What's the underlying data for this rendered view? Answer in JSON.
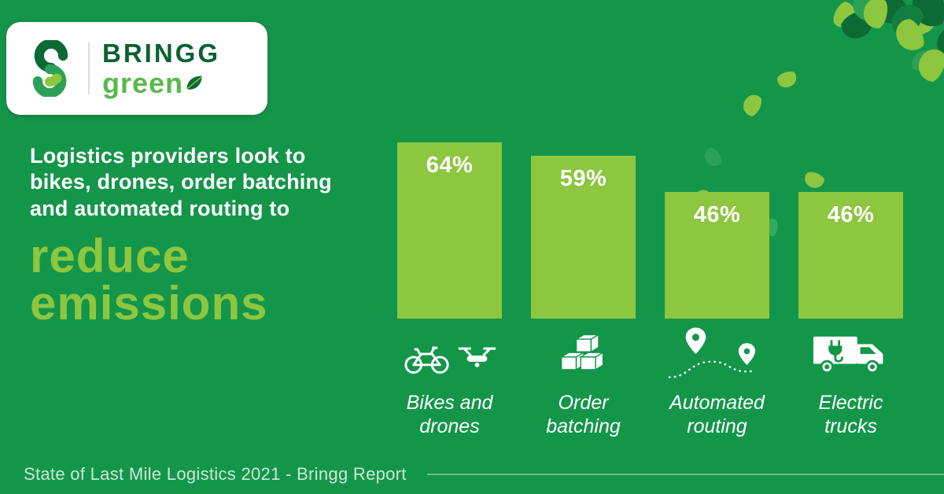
{
  "colors": {
    "background": "#14964a",
    "accent": "#8dc63f",
    "logo_dark_green": "#0c6132",
    "logo_green": "#56b94a",
    "text_white": "#ffffff"
  },
  "brand": {
    "name": "BRINGG",
    "tagline": "green",
    "logo_icon": "bringg-knot-icon",
    "tagline_icon": "leaf-icon"
  },
  "headline": {
    "lines": [
      "Logistics providers look to",
      "bikes, drones, order batching",
      "and automated routing to"
    ],
    "emphasis_lines": [
      "reduce",
      "emissions"
    ]
  },
  "chart_data": {
    "type": "bar",
    "categories": [
      "Bikes and\ndrones",
      "Order\nbatching",
      "Automated\nrouting",
      "Electric\ntrucks"
    ],
    "values": [
      64,
      59,
      46,
      46
    ],
    "value_labels": [
      "64%",
      "59%",
      "46%",
      "46%"
    ],
    "unit": "%",
    "ylim": [
      0,
      70
    ],
    "bar_color": "#8dc63f",
    "value_label_color": "#ffffff",
    "grid": false,
    "legend": false,
    "icons": [
      "bike-and-drone-icon",
      "order-batching-icon",
      "automated-routing-icon",
      "electric-truck-icon"
    ]
  },
  "footer": {
    "source": "State of Last Mile Logistics 2021 - Bringg Report"
  }
}
